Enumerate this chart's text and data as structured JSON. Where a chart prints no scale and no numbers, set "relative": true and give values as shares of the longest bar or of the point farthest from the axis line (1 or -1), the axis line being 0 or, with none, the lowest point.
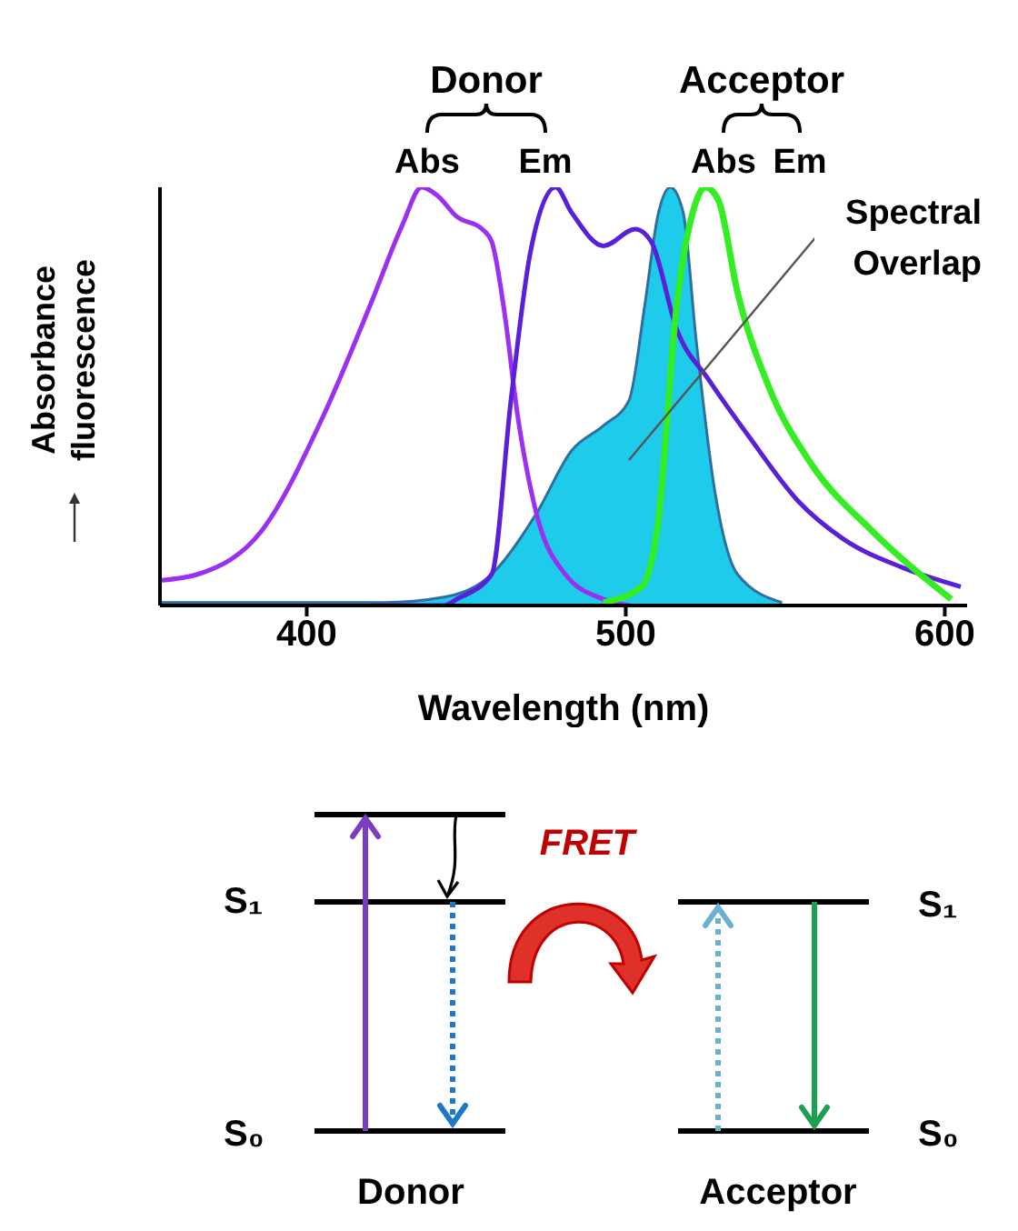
{
  "chart_data": {
    "type": "line",
    "relative": true,
    "xlabel": "Wavelength (nm)",
    "ylabel": "Absorbance fluorescence",
    "xlim": [
      354,
      607
    ],
    "xticks": [
      400,
      500,
      600
    ],
    "marker": "none",
    "series": [
      {
        "color": "#9b30f0",
        "x": [
          354,
          366,
          386,
          405,
          420,
          430,
          436,
          441,
          447,
          455,
          458,
          462,
          466,
          472,
          481,
          493,
          501
        ],
        "values": [
          0.06,
          0.075,
          0.18,
          0.45,
          0.72,
          0.91,
          1.0,
          0.98,
          0.93,
          0.9,
          0.87,
          0.7,
          0.46,
          0.22,
          0.075,
          0.015,
          0
        ]
      },
      {
        "color": "#5a1fd8",
        "x": [
          420,
          443,
          447,
          458,
          464,
          470,
          478,
          483,
          493,
          503,
          508,
          516,
          526,
          539,
          554,
          568,
          587,
          605
        ],
        "values": [
          0,
          0,
          0.015,
          0.075,
          0.49,
          0.84,
          1.0,
          0.94,
          0.86,
          0.9,
          0.87,
          0.66,
          0.54,
          0.4,
          0.25,
          0.16,
          0.09,
          0.045
        ]
      },
      {
        "type": "area",
        "color": "#1fcbea",
        "x": [
          354,
          424,
          443,
          458,
          472,
          483,
          493,
          501,
          506,
          510,
          514,
          518,
          522,
          528,
          535,
          549
        ],
        "values": [
          0.007,
          0.007,
          0.02,
          0.075,
          0.22,
          0.37,
          0.43,
          0.49,
          0.72,
          0.93,
          1.0,
          0.94,
          0.64,
          0.27,
          0.075,
          0.007
        ]
      },
      {
        "color": "#33ee22",
        "x": [
          493,
          505,
          510,
          516,
          521,
          525,
          529,
          535,
          545,
          558,
          577,
          602
        ],
        "values": [
          0.007,
          0.045,
          0.19,
          0.72,
          0.94,
          1.0,
          0.97,
          0.75,
          0.52,
          0.34,
          0.18,
          0.015
        ]
      }
    ],
    "annotations": [
      "Donor",
      "Abs",
      "Em",
      "Acceptor",
      "Abs",
      "Em",
      "Spectral Overlap",
      "S₁",
      "S₀",
      "FRET",
      "S₁",
      "S₀",
      "Donor",
      "Acceptor"
    ]
  }
}
